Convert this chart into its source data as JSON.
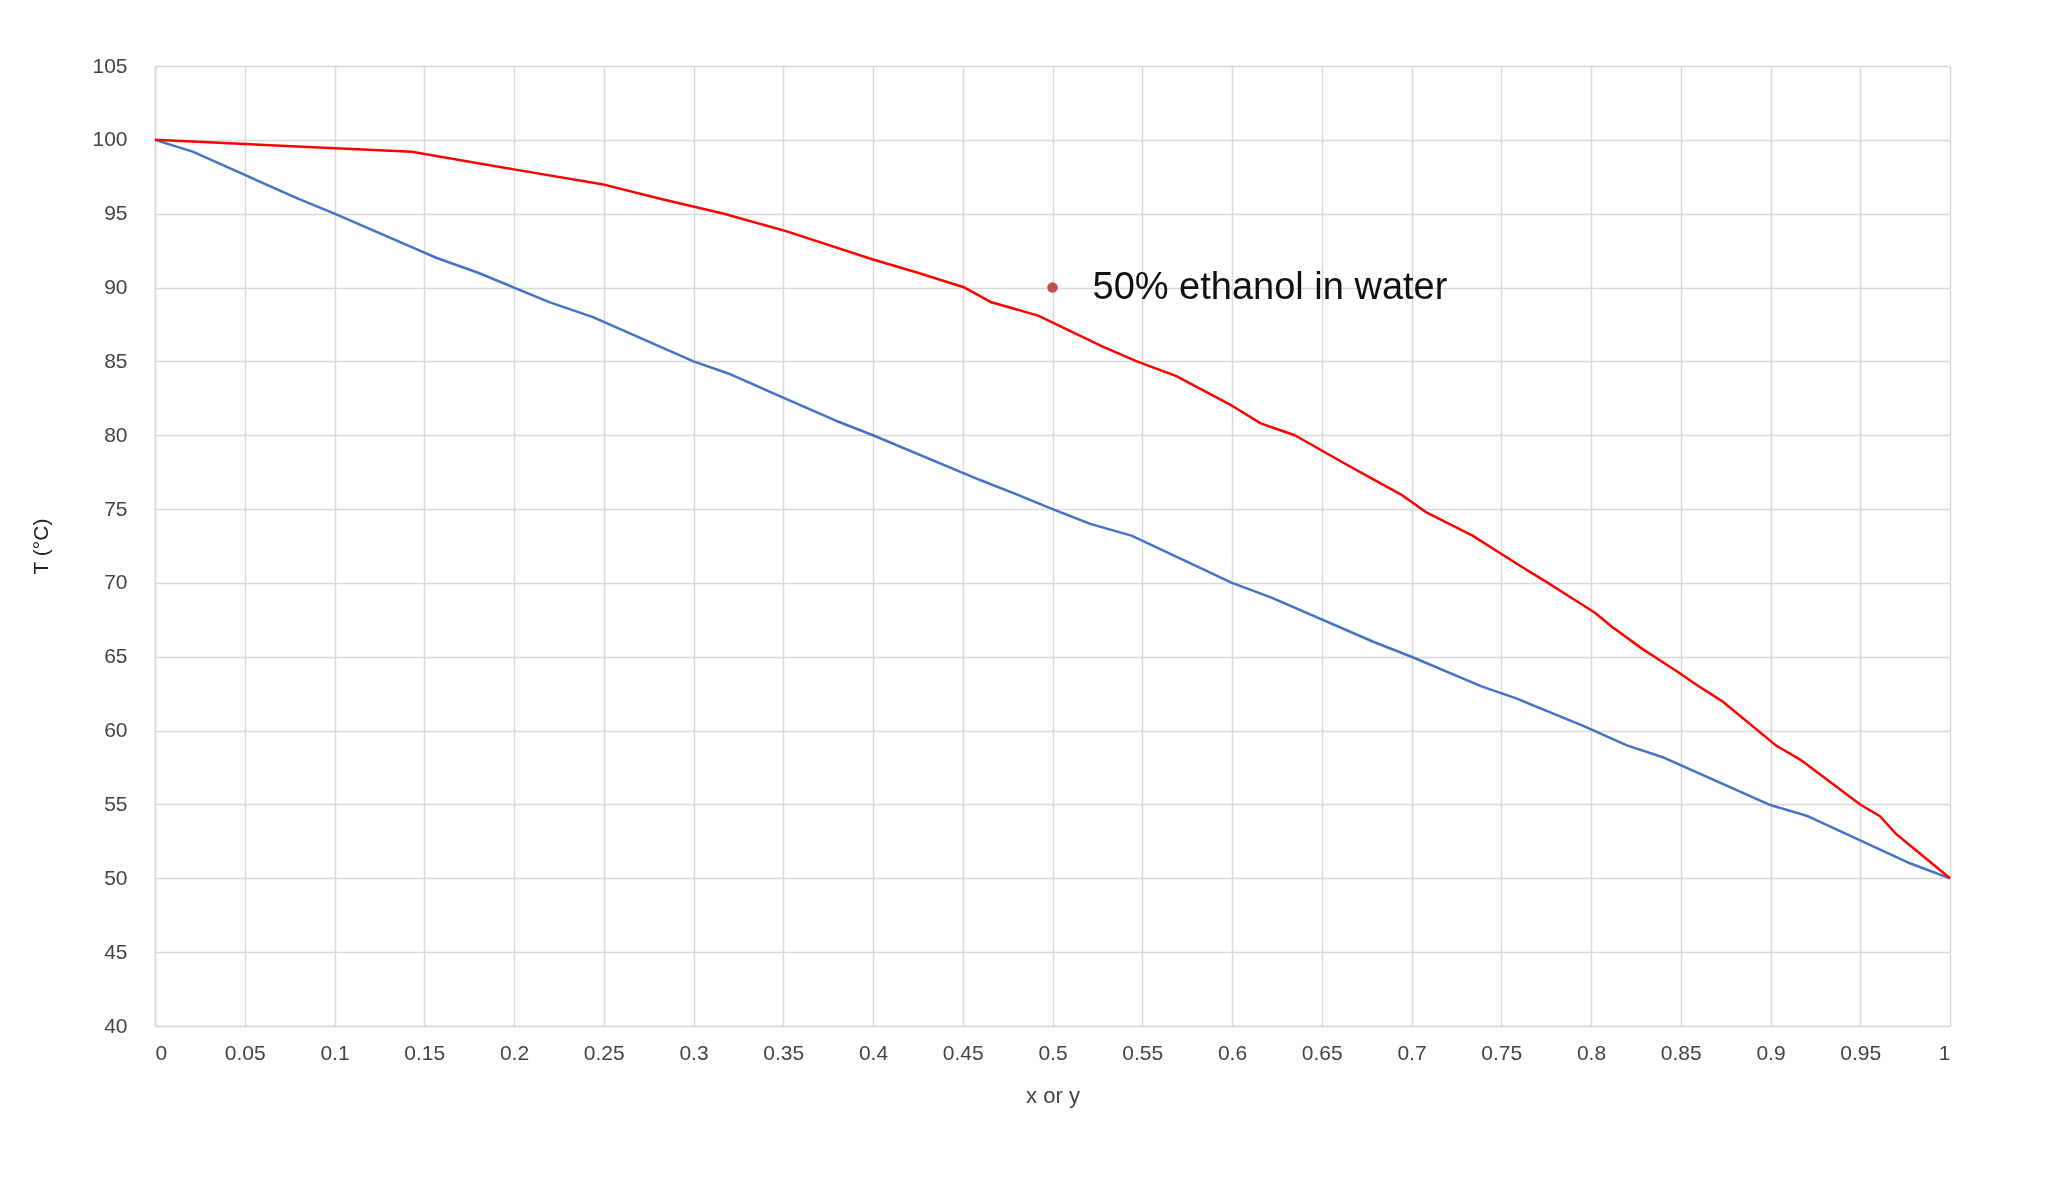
{
  "chart_data": {
    "type": "line",
    "xlabel": "x or y",
    "ylabel": "T (°C)",
    "xlim": [
      0,
      1
    ],
    "ylim": [
      40,
      105
    ],
    "xticks": [
      0,
      0.05,
      0.1,
      0.15,
      0.2,
      0.25,
      0.3,
      0.35,
      0.4,
      0.45,
      0.5,
      0.55,
      0.6,
      0.65,
      0.7,
      0.75,
      0.8,
      0.85,
      0.9,
      0.95,
      1
    ],
    "yticks": [
      40,
      45,
      50,
      55,
      60,
      65,
      70,
      75,
      80,
      85,
      90,
      95,
      100,
      105
    ],
    "grid": true,
    "marker": "none",
    "line_style": "solid",
    "annotations": [
      {
        "text": "50% ethanol in water",
        "x": 0.5,
        "y": 90
      }
    ],
    "series": [
      {
        "color": "#4472c4",
        "x": [
          0,
          0.021,
          0.08,
          0.1,
          0.157,
          0.18,
          0.2,
          0.22,
          0.244,
          0.3,
          0.319,
          0.379,
          0.4,
          0.459,
          0.48,
          0.5,
          0.521,
          0.544,
          0.6,
          0.622,
          0.679,
          0.7,
          0.739,
          0.758,
          0.796,
          0.82,
          0.84,
          0.899,
          0.921,
          0.978,
          1
        ],
        "values": [
          100,
          99.2,
          96,
          95,
          92,
          91,
          90,
          89,
          88,
          85,
          84.2,
          81,
          80,
          77,
          76,
          75,
          74,
          73.2,
          70,
          69,
          66,
          65,
          63,
          62.2,
          60.3,
          59,
          58.2,
          55,
          54.2,
          51,
          50
        ]
      },
      {
        "color": "#ff0000",
        "x": [
          0,
          0.143,
          0.2,
          0.249,
          0.282,
          0.317,
          0.352,
          0.4,
          0.425,
          0.451,
          0.466,
          0.492,
          0.528,
          0.547,
          0.569,
          0.6,
          0.616,
          0.635,
          0.664,
          0.679,
          0.694,
          0.708,
          0.734,
          0.76,
          0.776,
          0.789,
          0.802,
          0.812,
          0.829,
          0.848,
          0.86,
          0.873,
          0.903,
          0.917,
          0.95,
          0.961,
          0.97,
          1
        ],
        "values": [
          100,
          99.2,
          98,
          97,
          96,
          95,
          93.8,
          91.9,
          91,
          90,
          89,
          88.1,
          86,
          85,
          84,
          82,
          80.8,
          80,
          78,
          77,
          76,
          74.8,
          73.2,
          71.2,
          70,
          69,
          68,
          67,
          65.5,
          64,
          63,
          62,
          59,
          58,
          55,
          54.2,
          53,
          50
        ]
      },
      {
        "type": "scatter",
        "color": "#c0504d",
        "marker": "circle",
        "x": [
          0.5
        ],
        "values": [
          90
        ]
      }
    ]
  }
}
